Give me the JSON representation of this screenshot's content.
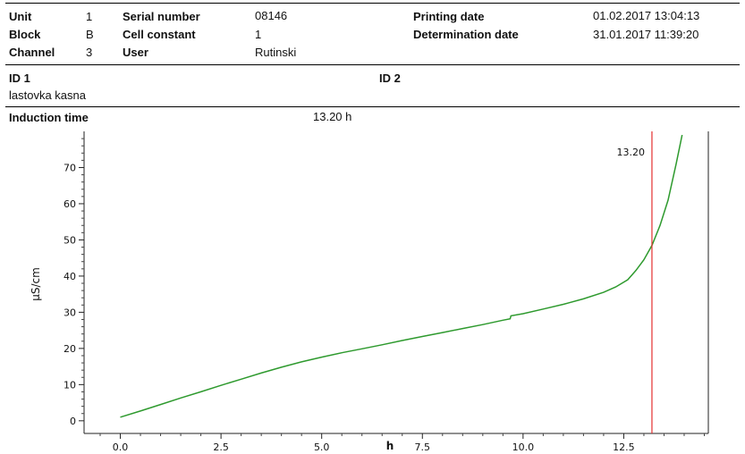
{
  "header": {
    "unit_label": "Unit",
    "unit_value": "1",
    "block_label": "Block",
    "block_value": "B",
    "channel_label": "Channel",
    "channel_value": "3",
    "serial_label": "Serial number",
    "serial_value": "08146",
    "cell_label": "Cell constant",
    "cell_value": "1",
    "user_label": "User",
    "user_value": "Rutinski",
    "printing_label": "Printing date",
    "printing_value": "01.02.2017 13:04:13",
    "determination_label": "Determination date",
    "determination_value": "31.01.2017 11:39:20"
  },
  "ids": {
    "id1_label": "ID 1",
    "id1_value": "lastovka kasna",
    "id2_label": "ID 2"
  },
  "induction": {
    "label": "Induction time",
    "value": "13.20 h"
  },
  "chart_data": {
    "type": "line",
    "xlabel": "h",
    "ylabel": "µS/cm",
    "xlim": [
      -0.9,
      14.6
    ],
    "ylim": [
      -3.5,
      80
    ],
    "x_ticks": [
      "0.0",
      "2.5",
      "5.0",
      "7.5",
      "10.0",
      "12.5"
    ],
    "x_tick_values": [
      0,
      2.5,
      5,
      7.5,
      10,
      12.5
    ],
    "y_ticks": [
      "0",
      "10",
      "20",
      "30",
      "40",
      "50",
      "60",
      "70"
    ],
    "y_tick_values": [
      0,
      10,
      20,
      30,
      40,
      50,
      60,
      70
    ],
    "grid": false,
    "series": [
      {
        "color": "#2e9a2e",
        "x": [
          0,
          0.5,
          1,
          1.5,
          2,
          2.5,
          3,
          3.5,
          4,
          4.5,
          5,
          5.5,
          6,
          6.5,
          7,
          7.5,
          8,
          8.5,
          9,
          9.5,
          9.68,
          9.7,
          10,
          10.5,
          11,
          11.5,
          12,
          12.3,
          12.6,
          12.8,
          13.0,
          13.2,
          13.4,
          13.6,
          13.8,
          13.95
        ],
        "y": [
          1,
          2.7,
          4.5,
          6.3,
          8.0,
          9.8,
          11.5,
          13.2,
          14.8,
          16.3,
          17.6,
          18.8,
          19.9,
          21.0,
          22.2,
          23.3,
          24.4,
          25.5,
          26.6,
          27.8,
          28.2,
          29.0,
          29.6,
          30.9,
          32.2,
          33.7,
          35.5,
          37.0,
          39.0,
          41.5,
          44.5,
          48.5,
          54,
          61,
          71,
          79
        ]
      }
    ],
    "marker": {
      "x": 13.2,
      "label": "13.20",
      "color": "#e53030"
    }
  }
}
